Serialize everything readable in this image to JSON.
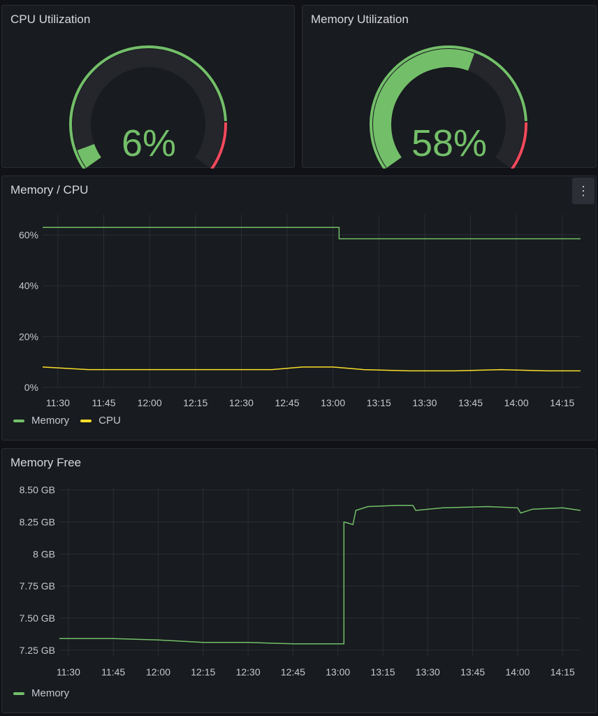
{
  "colors": {
    "green": "#73bf69",
    "yellow": "#fade2a",
    "red": "#f2495c",
    "track": "#25262b",
    "grid": "#2a2d33",
    "axis_text": "#c7c8cf"
  },
  "cpu_gauge": {
    "title": "CPU Utilization",
    "value_label": "6%",
    "value": 6,
    "min": 0,
    "max": 100,
    "threshold_red_from": 85
  },
  "mem_gauge": {
    "title": "Memory Utilization",
    "value_label": "58%",
    "value": 58,
    "min": 0,
    "max": 100,
    "threshold_red_from": 85
  },
  "memcpu": {
    "title": "Memory / CPU",
    "menu_icon": "kebab-menu-icon",
    "legend": [
      {
        "label": "Memory",
        "color": "#73bf69"
      },
      {
        "label": "CPU",
        "color": "#fade2a"
      }
    ]
  },
  "memfree": {
    "title": "Memory Free",
    "legend": [
      {
        "label": "Memory",
        "color": "#73bf69"
      }
    ]
  },
  "chart_data": [
    {
      "type": "line",
      "title": "Memory / CPU",
      "x_ticks": [
        "11:30",
        "11:45",
        "12:00",
        "12:15",
        "12:30",
        "12:45",
        "13:00",
        "13:15",
        "13:30",
        "13:45",
        "14:00",
        "14:15"
      ],
      "y_ticks": [
        "0%",
        "20%",
        "40%",
        "60%"
      ],
      "x_range": [
        "11:25",
        "14:21"
      ],
      "ylim": [
        0,
        68
      ],
      "grid": true,
      "legend_position": "bottom-left",
      "series": [
        {
          "name": "Memory",
          "color": "#73bf69",
          "x": [
            "11:25",
            "13:02",
            "13:02",
            "14:21"
          ],
          "y": [
            63,
            63,
            58.5,
            58.5
          ]
        },
        {
          "name": "CPU",
          "color": "#fade2a",
          "x": [
            "11:25",
            "11:40",
            "11:55",
            "12:10",
            "12:25",
            "12:40",
            "12:50",
            "13:00",
            "13:10",
            "13:25",
            "13:40",
            "13:55",
            "14:10",
            "14:21"
          ],
          "y": [
            8,
            7,
            7,
            7,
            7,
            7,
            8,
            8,
            7,
            6.5,
            6.5,
            7,
            6.5,
            6.5
          ]
        }
      ]
    },
    {
      "type": "line",
      "title": "Memory Free",
      "x_ticks": [
        "11:30",
        "11:45",
        "12:00",
        "12:15",
        "12:30",
        "12:45",
        "13:00",
        "13:15",
        "13:30",
        "13:45",
        "14:00",
        "14:15"
      ],
      "y_ticks": [
        "7.25 GB",
        "7.50 GB",
        "7.75 GB",
        "8 GB",
        "8.25 GB",
        "8.50 GB"
      ],
      "y_tick_values": [
        7.25,
        7.5,
        7.75,
        8,
        8.25,
        8.5
      ],
      "x_range": [
        "11:27",
        "14:21"
      ],
      "ylim": [
        7.2,
        8.52
      ],
      "grid": true,
      "legend_position": "bottom-left",
      "series": [
        {
          "name": "Memory",
          "color": "#73bf69",
          "x": [
            "11:27",
            "11:45",
            "12:00",
            "12:15",
            "12:30",
            "12:45",
            "13:00",
            "13:02",
            "13:02",
            "13:05",
            "13:06",
            "13:10",
            "13:20",
            "13:25",
            "13:26",
            "13:35",
            "13:50",
            "14:00",
            "14:01",
            "14:05",
            "14:15",
            "14:21"
          ],
          "y": [
            7.34,
            7.34,
            7.33,
            7.31,
            7.31,
            7.3,
            7.3,
            7.3,
            8.25,
            8.23,
            8.34,
            8.37,
            8.38,
            8.38,
            8.34,
            8.36,
            8.37,
            8.36,
            8.32,
            8.35,
            8.36,
            8.34
          ]
        }
      ]
    }
  ]
}
